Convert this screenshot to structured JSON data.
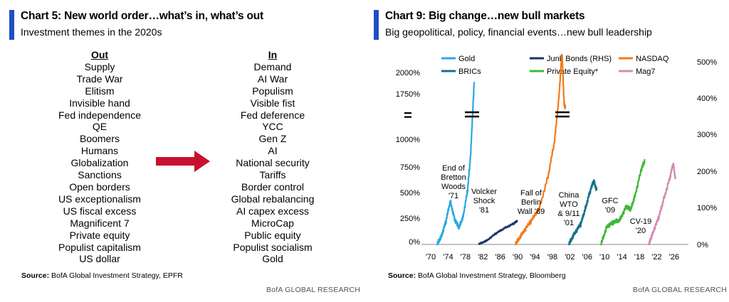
{
  "left": {
    "title": "Chart 5: New world order…what’s in, what’s out",
    "subtitle": "Investment themes in the 2020s",
    "out_header": "Out",
    "in_header": "In",
    "out_items": [
      "Supply",
      "Trade War",
      "Elitism",
      "Invisible hand",
      "Fed independence",
      "QE",
      "Boomers",
      "Humans",
      "Globalization",
      "Sanctions",
      "Open borders",
      "US exceptionalism",
      "US fiscal excess",
      "Magnificent 7",
      "Private equity",
      "Populist capitalism",
      "US dollar"
    ],
    "in_items": [
      "Demand",
      "AI War",
      "Populism",
      "Visible fist",
      "Fed deference",
      "YCC",
      "Gen Z",
      "AI",
      "National security",
      "Tariffs",
      "Border control",
      "Global rebalancing",
      "AI capex excess",
      "MicroCap",
      "Public equity",
      "Populist socialism",
      "Gold"
    ],
    "source_label": "Source:",
    "source_text": " BofA Global Investment Strategy, EPFR",
    "brand": "BofA GLOBAL RESEARCH",
    "arrow_color": "#c8102e"
  },
  "right": {
    "title": "Chart 9: Big change…new bull markets",
    "subtitle": "Big geopolitical, policy, financial events…new bull leadership",
    "source_label": "Source:",
    "source_text": " BofA Global Investment Strategy, Bloomberg",
    "brand": "BofA GLOBAL RESEARCH",
    "break_symbol": "="
  },
  "chart_data": {
    "type": "line",
    "title": "Chart 9: Big change…new bull markets",
    "subtitle": "Big geopolitical, policy, financial events…new bull leadership",
    "x_ticks": [
      "'70",
      "'74",
      "'78",
      "'82",
      "'86",
      "'90",
      "'94",
      "'98",
      "'02",
      "'06",
      "'10",
      "'14",
      "'18",
      "'22",
      "'26"
    ],
    "xlim": [
      1970,
      2027
    ],
    "y_left_ticks": [
      "0%",
      "250%",
      "500%",
      "750%",
      "1000%",
      "1750%",
      "2000%"
    ],
    "y_right_ticks": [
      "0%",
      "100%",
      "200%",
      "300%",
      "400%",
      "500%"
    ],
    "y_right_lim": [
      0,
      500
    ],
    "legend": [
      {
        "name": "Gold",
        "color": "#29a8e0"
      },
      {
        "name": "Junk Bonds (RHS)",
        "color": "#1a2f6e"
      },
      {
        "name": "NASDAQ",
        "color": "#f07a1a"
      },
      {
        "name": "BRICs",
        "color": "#176f8a"
      },
      {
        "name": "Private Equity*",
        "color": "#3db836"
      },
      {
        "name": "Mag7",
        "color": "#d48bb0"
      }
    ],
    "series": [
      {
        "name": "Gold",
        "axis": "left",
        "color": "#29a8e0",
        "points": [
          [
            1971.5,
            0
          ],
          [
            1972.5,
            100
          ],
          [
            1973.5,
            250
          ],
          [
            1974.5,
            480
          ],
          [
            1975.5,
            280
          ],
          [
            1976.5,
            180
          ],
          [
            1977.5,
            320
          ],
          [
            1978.5,
            600
          ],
          [
            1979.2,
            1000
          ],
          [
            1980.0,
            1900
          ]
        ],
        "break": true
      },
      {
        "name": "Junk Bonds (RHS)",
        "axis": "right",
        "color": "#1a2f6e",
        "points": [
          [
            1981.0,
            0
          ],
          [
            1983,
            12
          ],
          [
            1985,
            30
          ],
          [
            1987,
            45
          ],
          [
            1989,
            57
          ],
          [
            1990,
            65
          ]
        ]
      },
      {
        "name": "NASDAQ",
        "axis": "left",
        "color": "#f07a1a",
        "points": [
          [
            1989.5,
            0
          ],
          [
            1991,
            120
          ],
          [
            1993,
            250
          ],
          [
            1995,
            400
          ],
          [
            1997,
            750
          ],
          [
            1998.5,
            1100
          ],
          [
            1999.5,
            1700
          ],
          [
            2000.2,
            2300
          ],
          [
            2000.7,
            1600
          ],
          [
            2001.0,
            1550
          ]
        ],
        "break": true
      },
      {
        "name": "BRICs",
        "axis": "left",
        "color": "#176f8a",
        "points": [
          [
            2001.8,
            0
          ],
          [
            2003,
            120
          ],
          [
            2004.5,
            220
          ],
          [
            2005.5,
            380
          ],
          [
            2006.5,
            560
          ],
          [
            2007.5,
            700
          ],
          [
            2008.2,
            600
          ]
        ]
      },
      {
        "name": "Private Equity*",
        "axis": "left",
        "color": "#3db836",
        "points": [
          [
            2009.2,
            0
          ],
          [
            2010.5,
            200
          ],
          [
            2012,
            240
          ],
          [
            2013.5,
            270
          ],
          [
            2015,
            420
          ],
          [
            2016,
            380
          ],
          [
            2017,
            540
          ],
          [
            2018.5,
            830
          ],
          [
            2019.3,
            930
          ]
        ]
      },
      {
        "name": "Mag7",
        "axis": "left",
        "color": "#d48bb0",
        "points": [
          [
            2020.2,
            0
          ],
          [
            2021,
            120
          ],
          [
            2022.5,
            300
          ],
          [
            2023.5,
            480
          ],
          [
            2025,
            730
          ],
          [
            2025.8,
            890
          ],
          [
            2026.3,
            720
          ]
        ]
      }
    ],
    "annotations": [
      {
        "text": [
          "End of",
          "Bretton",
          "Woods",
          "'71"
        ]
      },
      {
        "text": [
          "Volcker",
          "Shock",
          "'81"
        ]
      },
      {
        "text": [
          "Fall of",
          "Berlin",
          "Wall '89"
        ]
      },
      {
        "text": [
          "China",
          "WTO",
          "& 9/11",
          "'01"
        ]
      },
      {
        "text": [
          "GFC",
          "'09"
        ]
      },
      {
        "text": [
          "CV-19",
          "'20"
        ]
      }
    ]
  }
}
